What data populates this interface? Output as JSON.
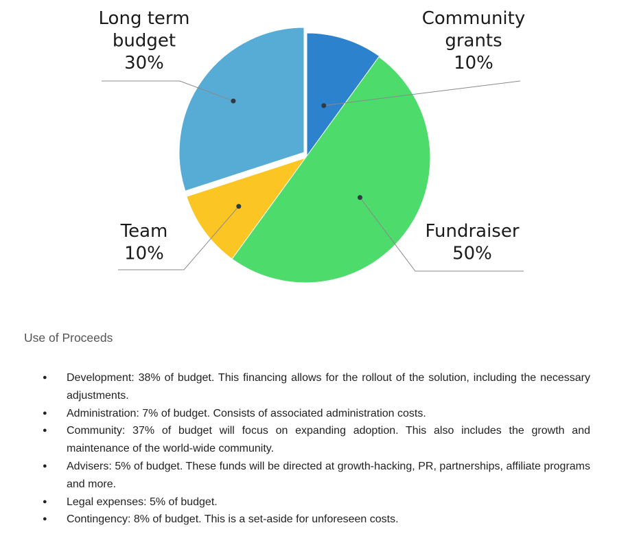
{
  "chart_data": {
    "type": "pie",
    "slices": [
      {
        "label_lines": [
          "Community",
          "grants"
        ],
        "percent_label": "10%",
        "value": 10,
        "color": "#2d82cd"
      },
      {
        "label_lines": [
          "Fundraiser"
        ],
        "percent_label": "50%",
        "value": 50,
        "color": "#4ddb6b"
      },
      {
        "label_lines": [
          "Team"
        ],
        "percent_label": "10%",
        "value": 10,
        "color": "#fbc524"
      },
      {
        "label_lines": [
          "Long term",
          "budget"
        ],
        "percent_label": "30%",
        "value": 30,
        "color": "#57acd6"
      }
    ]
  },
  "section": {
    "title": "Use of Proceeds",
    "items": [
      "Development: 38% of budget. This financing allows for the rollout of the solution, including the necessary adjustments.",
      "Administration: 7% of budget. Consists of associated administration costs.",
      "Community: 37% of budget will focus on expanding adoption. This also includes the growth and maintenance of the world-wide community.",
      "Advisers: 5% of budget. These funds will be directed at growth-hacking, PR, partnerships, affiliate programs and more.",
      "Legal expenses: 5% of budget.",
      "Contingency: 8% of budget. This is a set-aside for unforeseen costs."
    ]
  }
}
